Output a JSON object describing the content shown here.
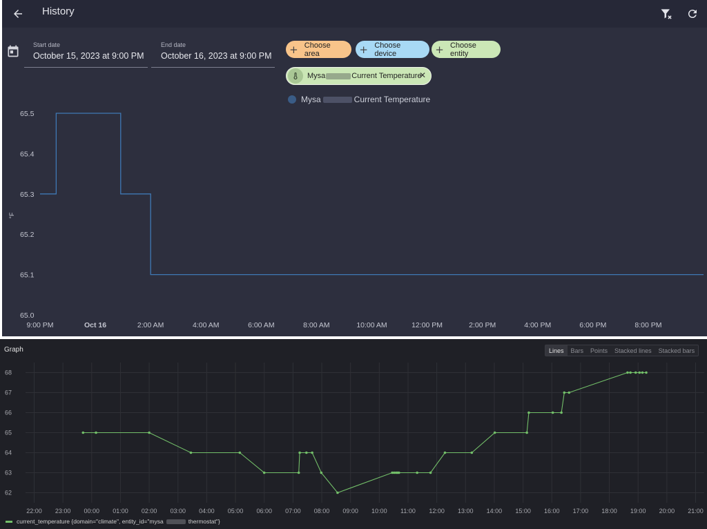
{
  "ha": {
    "title": "History",
    "start": {
      "label": "Start date",
      "value": "October 15, 2023 at 9:00 PM"
    },
    "end": {
      "label": "End date",
      "value": "October 16, 2023 at 9:00 PM"
    },
    "chips": {
      "area": "Choose area",
      "device": "Choose device",
      "entity": "Choose entity"
    },
    "selected_entity": {
      "prefix": "Mysa",
      "suffix": "Current Temperature"
    },
    "legend": {
      "prefix": "Mysa",
      "suffix": "Current Temperature"
    },
    "colors": {
      "line": "#3f79b5"
    },
    "icons": [
      "back-arrow-icon",
      "filter-remove-icon",
      "refresh-icon",
      "calendar-icon",
      "thermometer-icon",
      "close-icon",
      "plus-icon"
    ]
  },
  "gf": {
    "title": "Graph",
    "modes": [
      "Lines",
      "Bars",
      "Points",
      "Stacked lines",
      "Stacked bars"
    ],
    "active_mode": "Lines",
    "legend": {
      "prefix": "current_temperature {domain=\"climate\", entity_id=\"mysa",
      "suffix": "thermostat\"}"
    },
    "colors": {
      "line": "#73bf69"
    }
  },
  "chart_data": [
    {
      "type": "line",
      "step": true,
      "ylabel": "°F",
      "ylim": [
        65.0,
        65.5
      ],
      "yticks": [
        "65.0",
        "65.1",
        "65.2",
        "65.3",
        "65.4",
        "65.5"
      ],
      "x_range": [
        "2023-10-15 21:00",
        "2023-10-16 21:00"
      ],
      "xticks": [
        "9:00 PM",
        "Oct 16",
        "2:00 AM",
        "4:00 AM",
        "6:00 AM",
        "8:00 AM",
        "10:00 AM",
        "12:00 PM",
        "2:00 PM",
        "4:00 PM",
        "6:00 PM",
        "8:00 PM"
      ],
      "series": [
        {
          "points": [
            [
              "2023-10-15 21:00",
              65.3
            ],
            [
              "2023-10-15 21:35",
              65.5
            ],
            [
              "2023-10-15 23:55",
              65.3
            ],
            [
              "2023-10-16 01:00",
              65.1
            ],
            [
              "2023-10-16 21:00",
              65.1
            ]
          ]
        }
      ]
    },
    {
      "type": "line",
      "ylim": [
        61.5,
        68.5
      ],
      "yticks": [
        "62",
        "63",
        "64",
        "65",
        "66",
        "67",
        "68"
      ],
      "xticks": [
        "22:00",
        "23:00",
        "00:00",
        "01:00",
        "02:00",
        "03:00",
        "04:00",
        "05:00",
        "06:00",
        "07:00",
        "08:00",
        "09:00",
        "10:00",
        "11:00",
        "12:00",
        "13:00",
        "14:00",
        "15:00",
        "16:00",
        "17:00",
        "18:00",
        "19:00",
        "20:00",
        "21:00"
      ],
      "x_range": [
        "2023-10-15 21:42",
        "2023-10-16 21:18"
      ],
      "series": [
        {
          "points": [
            [
              "2023-10-15 23:42",
              65
            ],
            [
              "2023-10-16 00:09",
              65
            ],
            [
              "2023-10-16 02:00",
              65
            ],
            [
              "2023-10-16 03:27",
              64
            ],
            [
              "2023-10-16 05:09",
              64
            ],
            [
              "2023-10-16 06:00",
              63
            ],
            [
              "2023-10-16 07:12",
              63
            ],
            [
              "2023-10-16 07:14",
              64
            ],
            [
              "2023-10-16 07:28",
              64
            ],
            [
              "2023-10-16 07:40",
              64
            ],
            [
              "2023-10-16 07:59",
              63
            ],
            [
              "2023-10-16 08:33",
              62
            ],
            [
              "2023-10-16 10:27",
              63
            ],
            [
              "2023-10-16 10:31",
              63
            ],
            [
              "2023-10-16 10:35",
              63
            ],
            [
              "2023-10-16 10:38",
              63
            ],
            [
              "2023-10-16 10:41",
              63
            ],
            [
              "2023-10-16 11:19",
              63
            ],
            [
              "2023-10-16 11:47",
              63
            ],
            [
              "2023-10-16 12:17",
              64
            ],
            [
              "2023-10-16 13:13",
              64
            ],
            [
              "2023-10-16 14:01",
              65
            ],
            [
              "2023-10-16 15:08",
              65
            ],
            [
              "2023-10-16 15:12",
              66
            ],
            [
              "2023-10-16 16:02",
              66
            ],
            [
              "2023-10-16 16:20",
              66
            ],
            [
              "2023-10-16 16:26",
              67
            ],
            [
              "2023-10-16 16:36",
              67
            ],
            [
              "2023-10-16 18:38",
              68
            ],
            [
              "2023-10-16 18:44",
              68
            ],
            [
              "2023-10-16 18:55",
              68
            ],
            [
              "2023-10-16 19:03",
              68
            ],
            [
              "2023-10-16 19:09",
              68
            ],
            [
              "2023-10-16 19:17",
              68
            ]
          ]
        }
      ]
    }
  ]
}
